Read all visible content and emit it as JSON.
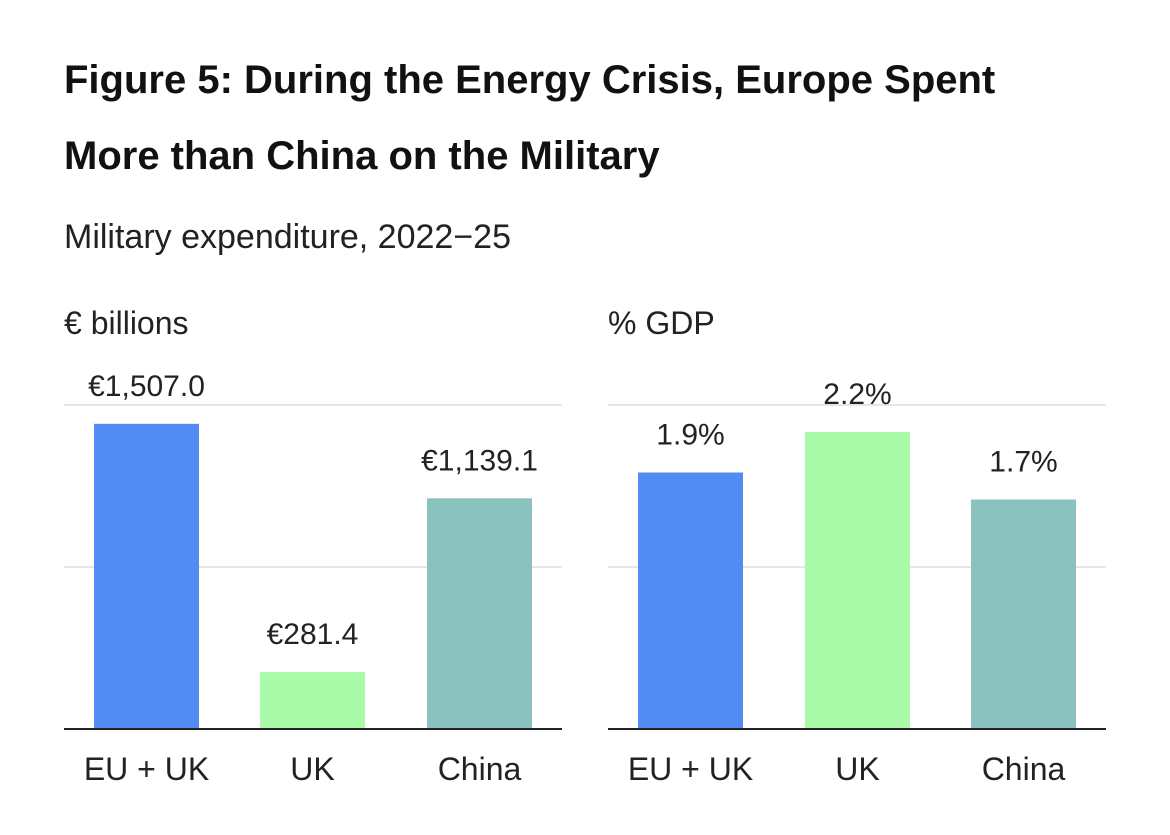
{
  "title_line1": "Figure 5: During the Energy Crisis, Europe Spent",
  "title_line2": "More than China on the Military",
  "subtitle": "Military expenditure, 2022−25",
  "colors": {
    "eu_uk": "#528bf2",
    "uk": "#aafba9",
    "china": "#8bc1bf",
    "grid": "#e6e6e6",
    "axis": "#222222"
  },
  "chart_data": [
    {
      "type": "bar",
      "ylabel": "€ billions",
      "categories": [
        "EU + UK",
        "UK",
        "China"
      ],
      "values": [
        1507.0,
        281.4,
        1139.1
      ],
      "labels": [
        "€1,507.0",
        "€281.4",
        "€1,139.1"
      ],
      "ylim": [
        0,
        1600
      ],
      "gridlines": [
        0,
        800,
        1600
      ]
    },
    {
      "type": "bar",
      "ylabel": "% GDP",
      "categories": [
        "EU + UK",
        "UK",
        "China"
      ],
      "values": [
        1.9,
        2.2,
        1.7
      ],
      "labels": [
        "1.9%",
        "2.2%",
        "1.7%"
      ],
      "ylim": [
        0,
        2.4
      ],
      "gridlines": [
        0,
        1.2,
        2.4
      ]
    }
  ]
}
